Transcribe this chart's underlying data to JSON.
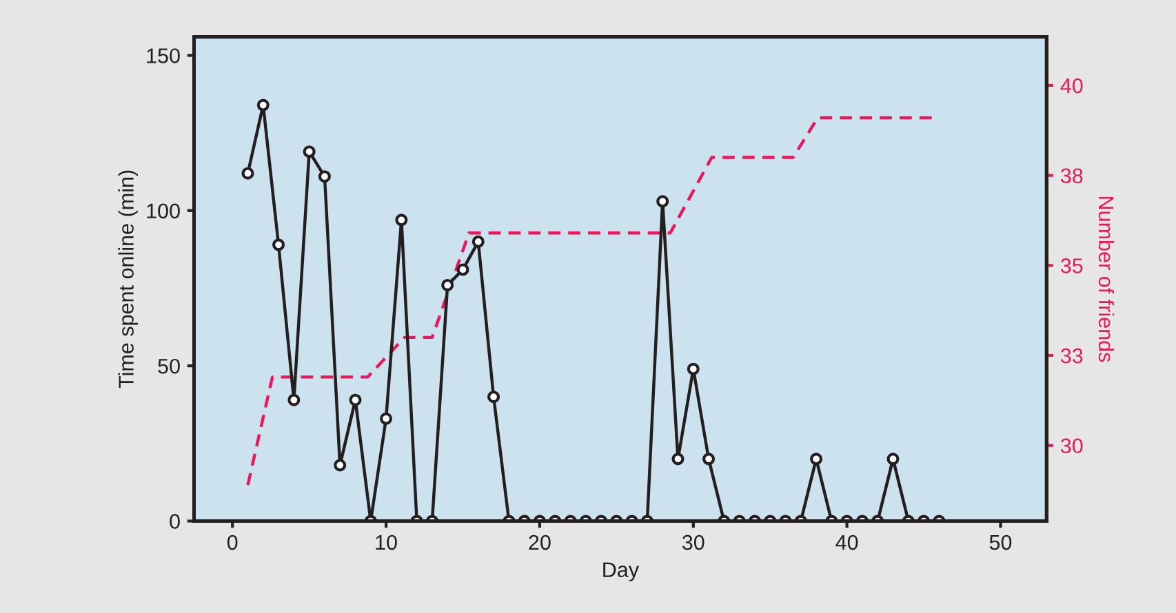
{
  "chart_data": {
    "type": "line",
    "xlabel": "Day",
    "ylabel": "Time spent online (min)",
    "y2label": "Number of friends",
    "xlim": [
      -2.5,
      53
    ],
    "xticks": [
      0,
      10,
      20,
      30,
      40,
      50
    ],
    "ylim": [
      0,
      156
    ],
    "yticks": [
      0,
      50,
      100,
      150
    ],
    "y2lim": [
      27.9,
      41.35
    ],
    "y2ticks": [
      30,
      {
        "value": 32.5,
        "label": "33"
      },
      35,
      {
        "value": 37.5,
        "label": "38"
      },
      40
    ],
    "grid": false,
    "series": [
      {
        "color": "#231f20",
        "marker": "circle",
        "line_style": "solid",
        "x": [
          1,
          2,
          3,
          4,
          5,
          6,
          7,
          8,
          9,
          10,
          11,
          12,
          13,
          14,
          15,
          16,
          17,
          18,
          19,
          20,
          21,
          22,
          23,
          24,
          25,
          26,
          27,
          28,
          29,
          30,
          31,
          32,
          33,
          34,
          35,
          36,
          37,
          38,
          39,
          40,
          41,
          42,
          43,
          44,
          45,
          46
        ],
        "values": [
          112,
          134,
          89,
          39,
          119,
          111,
          18,
          39,
          0,
          33,
          97,
          0,
          0,
          76,
          81,
          90,
          40,
          0,
          0,
          0,
          0,
          0,
          0,
          0,
          0,
          0,
          0,
          103,
          20,
          49,
          20,
          0,
          0,
          0,
          0,
          0,
          0,
          20,
          0,
          0,
          0,
          0,
          20,
          0,
          0,
          0
        ]
      },
      {
        "color": "#e8195a",
        "marker": "none",
        "line_style": "dashed",
        "axis": "y2",
        "x": [
          1,
          2.6,
          8.8,
          11.2,
          13,
          15.4,
          28.5,
          31.2,
          36.5,
          38.1,
          45.7
        ],
        "values": [
          28.9,
          31.9,
          31.9,
          33.0,
          33.0,
          35.9,
          35.9,
          38.0,
          38.0,
          39.1,
          39.1
        ]
      }
    ]
  }
}
